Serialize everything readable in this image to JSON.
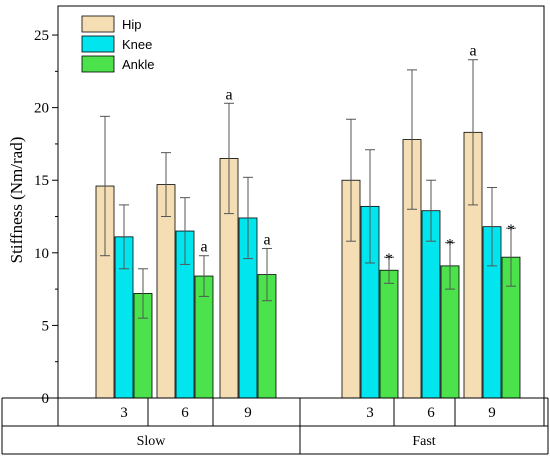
{
  "chart_data": {
    "type": "bar",
    "ylabel": "Stiffness (Nm/rad)",
    "ylim": [
      0,
      27
    ],
    "yticks": [
      "0",
      "5",
      "10",
      "15",
      "20",
      "25"
    ],
    "grid": false,
    "legend_position": "top-left",
    "categories": [
      "3",
      "6",
      "9",
      "3",
      "6",
      "9"
    ],
    "groups": [
      {
        "label": "Slow",
        "categories": [
          "3",
          "6",
          "9"
        ]
      },
      {
        "label": "Fast",
        "categories": [
          "3",
          "6",
          "9"
        ]
      }
    ],
    "series": [
      {
        "name": "Hip",
        "color": "#f5deb3",
        "values": [
          14.6,
          14.7,
          16.5,
          15.0,
          17.8,
          18.3
        ],
        "errors": [
          4.8,
          2.2,
          3.8,
          4.2,
          4.8,
          5.0
        ],
        "annotations": [
          "",
          "",
          "a",
          "",
          "",
          "a"
        ]
      },
      {
        "name": "Knee",
        "color": "#00e5ee",
        "values": [
          11.1,
          11.5,
          12.4,
          13.2,
          12.9,
          11.8
        ],
        "errors": [
          2.2,
          2.3,
          2.8,
          3.9,
          2.1,
          2.7
        ],
        "annotations": [
          "",
          "",
          "",
          "",
          "",
          ""
        ]
      },
      {
        "name": "Ankle",
        "color": "#4be24b",
        "values": [
          7.2,
          8.4,
          8.5,
          8.8,
          9.1,
          9.7
        ],
        "errors": [
          1.7,
          1.4,
          1.8,
          0.9,
          1.6,
          2.0
        ],
        "annotations": [
          "",
          "a",
          "a",
          "*",
          "*",
          "*"
        ]
      }
    ]
  }
}
